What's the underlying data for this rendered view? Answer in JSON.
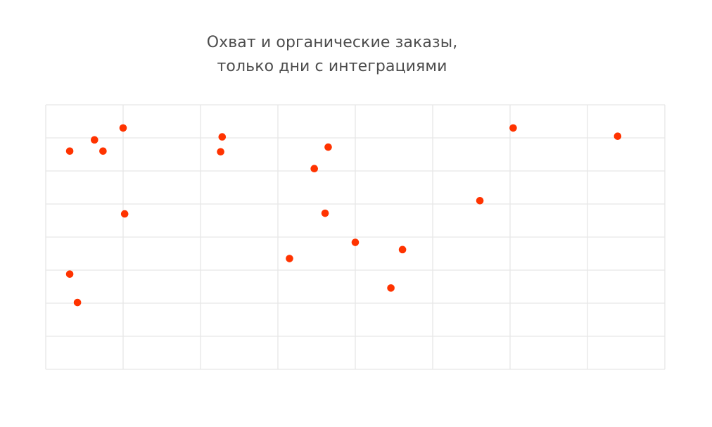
{
  "chart_data": {
    "type": "scatter",
    "title_lines": [
      "Охват и органические заказы,",
      "только дни с интеграциями"
    ],
    "xlabel": "",
    "ylabel": "",
    "xlim": [
      0,
      8
    ],
    "ylim": [
      0,
      8
    ],
    "grid": true,
    "point_color": "#ff3300",
    "series": [
      {
        "points": [
          {
            "x": 0.31,
            "y": 6.6
          },
          {
            "x": 0.63,
            "y": 6.94
          },
          {
            "x": 0.74,
            "y": 6.6
          },
          {
            "x": 1.0,
            "y": 7.3
          },
          {
            "x": 1.02,
            "y": 4.7
          },
          {
            "x": 0.31,
            "y": 2.88
          },
          {
            "x": 0.41,
            "y": 2.02
          },
          {
            "x": 2.28,
            "y": 7.03
          },
          {
            "x": 2.26,
            "y": 6.58
          },
          {
            "x": 3.65,
            "y": 6.72
          },
          {
            "x": 3.47,
            "y": 6.07
          },
          {
            "x": 3.61,
            "y": 4.72
          },
          {
            "x": 4.0,
            "y": 3.84
          },
          {
            "x": 3.15,
            "y": 3.35
          },
          {
            "x": 4.61,
            "y": 3.62
          },
          {
            "x": 4.46,
            "y": 2.46
          },
          {
            "x": 5.61,
            "y": 5.1
          },
          {
            "x": 6.04,
            "y": 7.3
          },
          {
            "x": 7.39,
            "y": 7.05
          }
        ]
      }
    ]
  }
}
